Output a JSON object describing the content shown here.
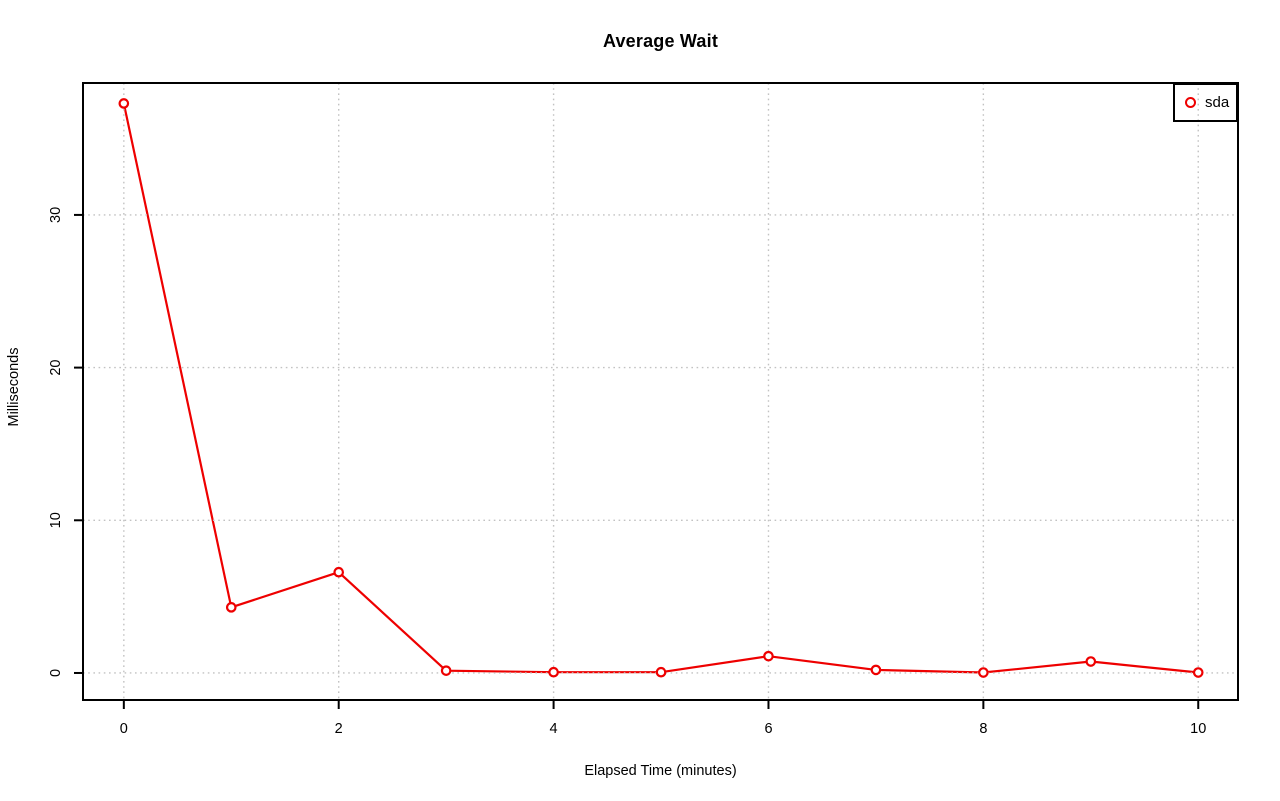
{
  "page": {
    "background": "#ffffff"
  },
  "chart_data": {
    "type": "line",
    "title": "Average Wait",
    "xlabel": "Elapsed Time (minutes)",
    "ylabel": "Milliseconds",
    "x": [
      0,
      1,
      2,
      3,
      4,
      5,
      6,
      7,
      8,
      9,
      10
    ],
    "series": [
      {
        "name": "sda",
        "color": "#ee0000",
        "marker": "open-circle",
        "values": [
          37.3,
          4.3,
          6.6,
          0.15,
          0.05,
          0.05,
          1.1,
          0.2,
          0.03,
          0.75,
          0.03
        ]
      }
    ],
    "xticks": {
      "values": [
        0,
        2,
        4,
        6,
        8,
        10
      ],
      "labels": [
        "0",
        "2",
        "4",
        "6",
        "8",
        "10"
      ]
    },
    "yticks": {
      "values": [
        0,
        10,
        20,
        30
      ],
      "labels": [
        "0",
        "10",
        "20",
        "30"
      ]
    },
    "xlim": [
      -0.38,
      10.37
    ],
    "ylim": [
      -1.77,
      38.64
    ],
    "grid": "dotted",
    "grid_color": "#c2c2c2",
    "axis_color": "#000000",
    "tick_label_color": "#000000",
    "legend": {
      "position": "top-right",
      "entries": [
        "sda"
      ]
    }
  }
}
